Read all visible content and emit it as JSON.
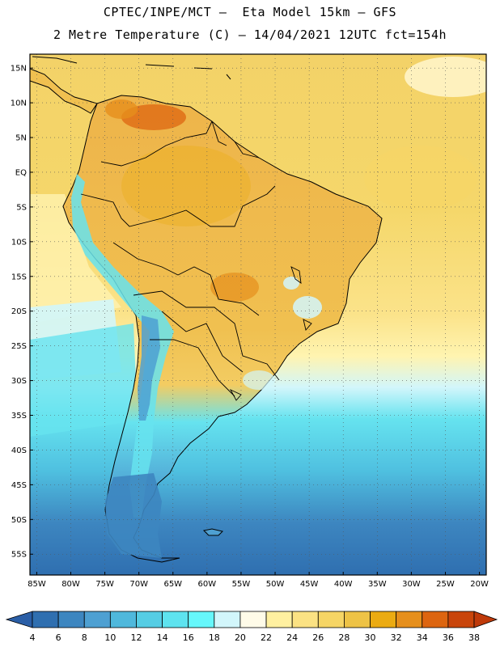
{
  "header": {
    "line1": "CPTEC/INPE/MCT –  Eta Model 15km – GFS",
    "line2": "2 Metre Temperature (C) – 14/04/2021 12UTC fct=154h"
  },
  "map": {
    "lat_labels": [
      "15N",
      "10N",
      "5N",
      "EQ",
      "5S",
      "10S",
      "15S",
      "20S",
      "25S",
      "30S",
      "35S",
      "40S",
      "45S",
      "50S",
      "55S"
    ],
    "lon_labels": [
      "85W",
      "80W",
      "75W",
      "70W",
      "65W",
      "60W",
      "55W",
      "50W",
      "45W",
      "40W",
      "35W",
      "30W",
      "25W",
      "20W"
    ],
    "lon_range": [
      -86,
      -19
    ],
    "lat_range": [
      -58,
      17
    ]
  },
  "colorbar": {
    "labels": [
      "4",
      "6",
      "8",
      "10",
      "12",
      "14",
      "16",
      "18",
      "20",
      "22",
      "24",
      "26",
      "28",
      "30",
      "32",
      "34",
      "36",
      "38"
    ],
    "colors": [
      "#2f6fb0",
      "#3d86c0",
      "#4ea0d2",
      "#4fb8dc",
      "#55cde4",
      "#5ee3ef",
      "#66f7fb",
      "#d2f6fb",
      "#fffbe8",
      "#fff0a0",
      "#fbe283",
      "#f6d565",
      "#eec346",
      "#ebab12",
      "#e68f1c",
      "#dd6510",
      "#c9450b"
    ],
    "low_color": "#2a5ea6",
    "high_color": "#bf3a0a"
  }
}
